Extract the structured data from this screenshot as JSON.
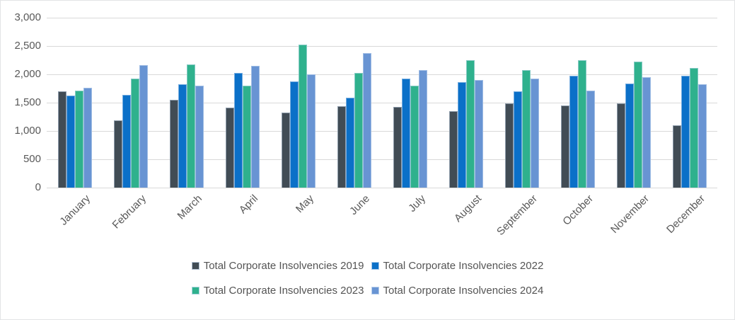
{
  "chart_data": {
    "type": "bar",
    "title": "",
    "xlabel": "",
    "ylabel": "",
    "grid": true,
    "legend_position": "bottom",
    "ylim": [
      0,
      3000
    ],
    "y_ticks": [
      {
        "value": 0,
        "label": "0"
      },
      {
        "value": 500,
        "label": "500"
      },
      {
        "value": 1000,
        "label": "1,000"
      },
      {
        "value": 1500,
        "label": "1,500"
      },
      {
        "value": 2000,
        "label": "2,000"
      },
      {
        "value": 2500,
        "label": "2,500"
      },
      {
        "value": 3000,
        "label": "3,000"
      }
    ],
    "categories": [
      "January",
      "February",
      "March",
      "April",
      "May",
      "June",
      "July",
      "August",
      "September",
      "October",
      "November",
      "December"
    ],
    "series": [
      {
        "key": "2019",
        "name": "Total Corporate Insolvencies 2019",
        "color": "#414c55",
        "values": [
          1700,
          1190,
          1555,
          1410,
          1330,
          1440,
          1420,
          1350,
          1490,
          1450,
          1490,
          1100
        ]
      },
      {
        "key": "2022",
        "name": "Total Corporate Insolvencies 2022",
        "color": "#0b70c8",
        "values": [
          1630,
          1640,
          1830,
          2030,
          1875,
          1585,
          1925,
          1865,
          1705,
          1975,
          1835,
          1970
        ]
      },
      {
        "key": "2023",
        "name": "Total Corporate Insolvencies 2023",
        "color": "#2fb18d",
        "values": [
          1715,
          1930,
          2175,
          1800,
          2530,
          2020,
          1800,
          2245,
          2080,
          2255,
          2220,
          2115
        ]
      },
      {
        "key": "2024",
        "name": "Total Corporate Insolvencies 2024",
        "color": "#6894d3",
        "values": [
          1765,
          2165,
          1805,
          2155,
          2000,
          2370,
          2075,
          1905,
          1925,
          1715,
          1950,
          1820
        ]
      }
    ]
  },
  "style": {
    "gridline_color": "#d9d9d9",
    "axis_text_color": "#595959",
    "legend_text_color": "#545454",
    "background": "#ffffff"
  }
}
